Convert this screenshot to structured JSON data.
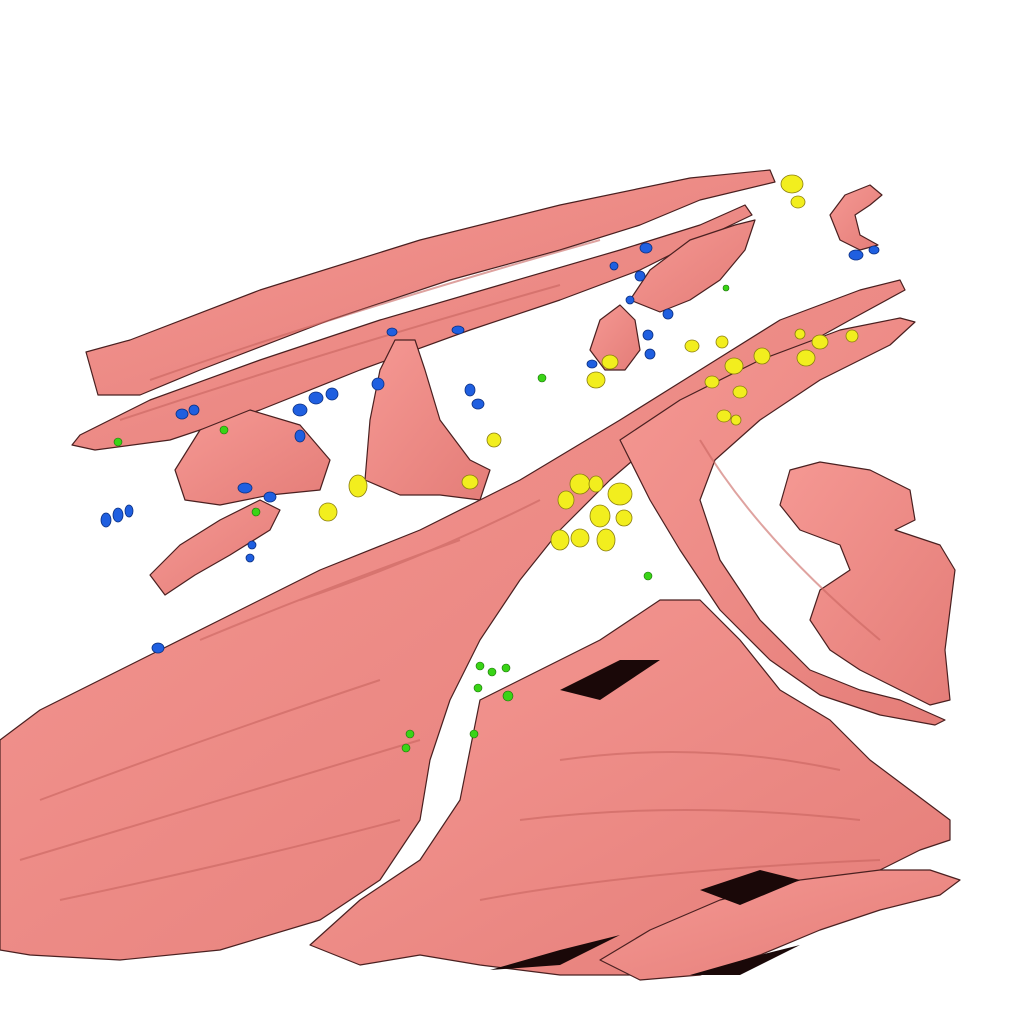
{
  "scene": {
    "background": "#ffffff",
    "colors": {
      "membrane": "#ef8a86",
      "membrane_shade": "#d9706c",
      "membrane_edge": "#4a2020",
      "deep_shadow": "#1a0808",
      "blue_particles": "#1f5fe0",
      "yellow_particles": "#f2ee1e",
      "green_particles": "#39d416"
    }
  }
}
